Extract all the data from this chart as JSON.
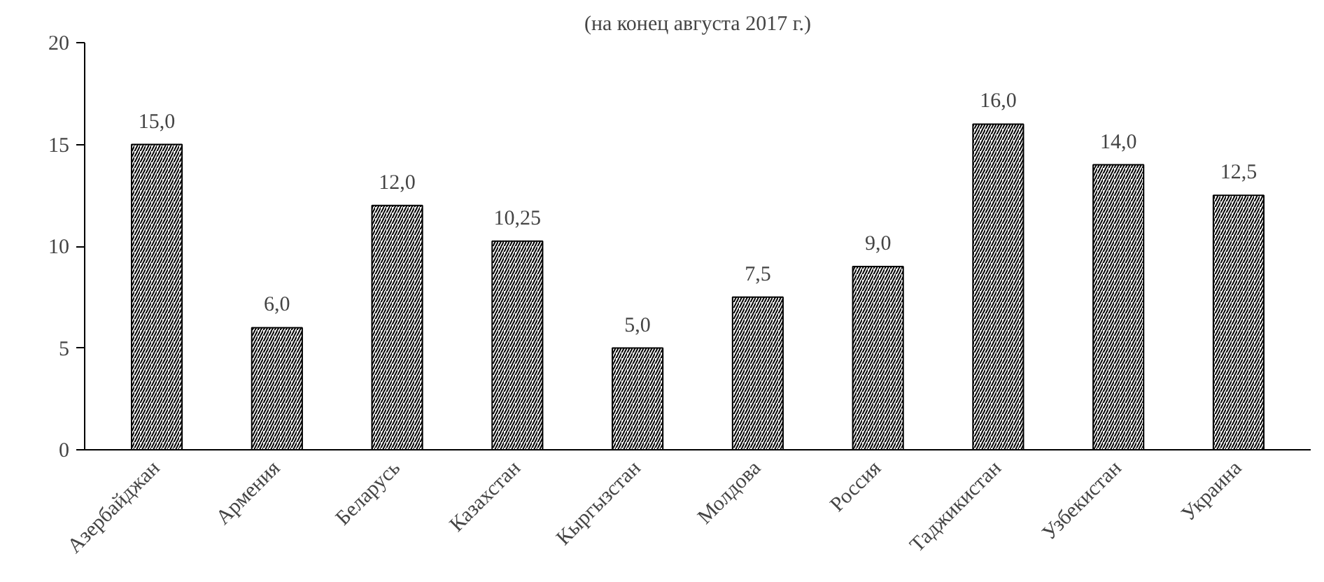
{
  "chart_data": {
    "type": "bar",
    "title": "(на конец августа 2017 г.)",
    "categories": [
      "Азербайджан",
      "Армения",
      "Беларусь",
      "Казахстан",
      "Кыргызстан",
      "Молдова",
      "Россия",
      "Таджикистан",
      "Узбекистан",
      "Украина"
    ],
    "values": [
      15,
      6,
      12,
      10.25,
      5,
      7.5,
      9,
      16,
      14,
      12.5
    ],
    "value_labels": [
      "15,0",
      "6,0",
      "12,0",
      "10,25",
      "5,0",
      "7,5",
      "9,0",
      "16,0",
      "14,0",
      "12,5"
    ],
    "color": "#000000",
    "ylim": [
      0,
      20
    ],
    "yticks": [
      0,
      5,
      10,
      15,
      20
    ],
    "grid": false
  }
}
